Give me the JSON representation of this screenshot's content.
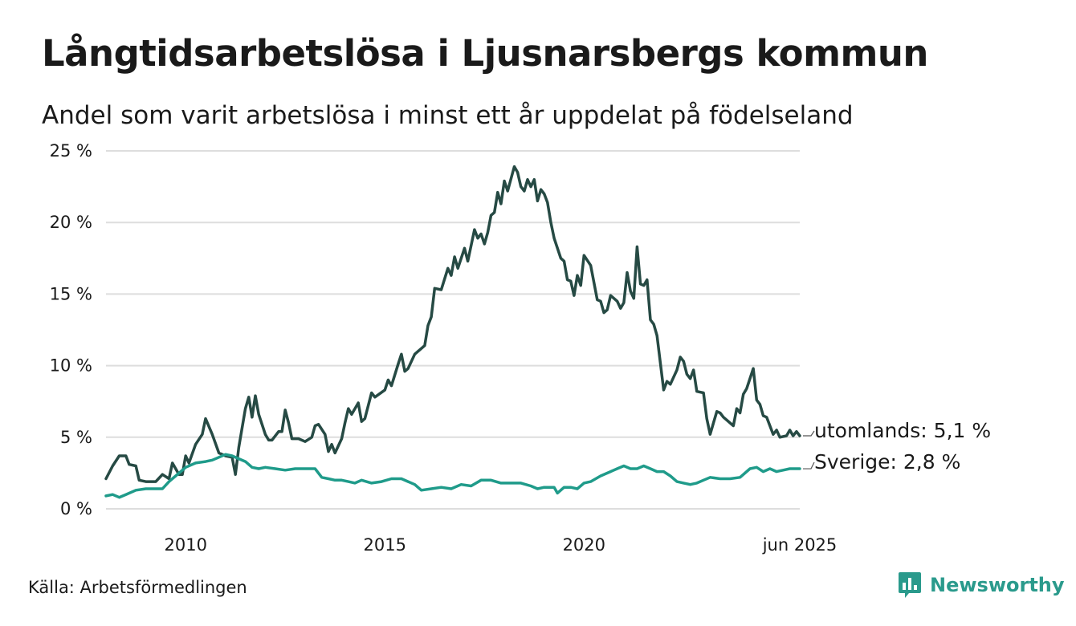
{
  "header": {
    "title": "Långtidsarbetslösa i Ljusnarsbergs kommun",
    "subtitle": "Andel som varit arbetslösa i minst ett år uppdelat på födelseland"
  },
  "footer": {
    "source": "Källa: Arbetsförmedlingen",
    "brand": "Newsworthy"
  },
  "colors": {
    "utomlands": "#264a44",
    "sverige": "#1f9b8a",
    "grid": "#dddddd",
    "brand": "#2a9a8c"
  },
  "icons": {
    "brand_logo": "bar-chart-speech-bubble-icon"
  },
  "chart_data": {
    "type": "line",
    "x_start": "2008-01",
    "x_end": "2025-06",
    "x_step": "month",
    "ylim": [
      0,
      25
    ],
    "y_ticks": [
      0,
      5,
      10,
      15,
      20,
      25
    ],
    "y_tick_labels": [
      "0 %",
      "5 %",
      "10 %",
      "15 %",
      "20 %",
      "25 %"
    ],
    "x_ticks": [
      "2010-01",
      "2015-01",
      "2020-01",
      "2025-06"
    ],
    "x_tick_labels": [
      "2010",
      "2015",
      "2020",
      "jun 2025"
    ],
    "grid": true,
    "series": [
      {
        "name": "utomlands",
        "end_label": "utomlands: 5,1 %",
        "keypoints": [
          [
            "2008-01",
            2.1
          ],
          [
            "2008-03",
            3.0
          ],
          [
            "2008-05",
            3.7
          ],
          [
            "2008-07",
            3.7
          ],
          [
            "2008-08",
            3.1
          ],
          [
            "2008-10",
            3.0
          ],
          [
            "2008-11",
            2.0
          ],
          [
            "2009-01",
            1.9
          ],
          [
            "2009-04",
            1.9
          ],
          [
            "2009-06",
            2.4
          ],
          [
            "2009-08",
            2.1
          ],
          [
            "2009-09",
            3.2
          ],
          [
            "2009-11",
            2.4
          ],
          [
            "2009-12",
            2.4
          ],
          [
            "2010-01",
            3.7
          ],
          [
            "2010-02",
            3.2
          ],
          [
            "2010-04",
            4.5
          ],
          [
            "2010-06",
            5.2
          ],
          [
            "2010-07",
            6.3
          ],
          [
            "2010-09",
            5.2
          ],
          [
            "2010-11",
            3.9
          ],
          [
            "2011-01",
            3.7
          ],
          [
            "2011-03",
            3.6
          ],
          [
            "2011-04",
            2.4
          ],
          [
            "2011-05",
            4.3
          ],
          [
            "2011-07",
            7.0
          ],
          [
            "2011-08",
            7.8
          ],
          [
            "2011-09",
            6.4
          ],
          [
            "2011-10",
            7.9
          ],
          [
            "2011-11",
            6.6
          ],
          [
            "2012-01",
            5.2
          ],
          [
            "2012-02",
            4.8
          ],
          [
            "2012-03",
            4.8
          ],
          [
            "2012-05",
            5.4
          ],
          [
            "2012-06",
            5.4
          ],
          [
            "2012-07",
            6.9
          ],
          [
            "2012-08",
            6.0
          ],
          [
            "2012-09",
            4.9
          ],
          [
            "2012-11",
            4.9
          ],
          [
            "2013-01",
            4.7
          ],
          [
            "2013-03",
            5.0
          ],
          [
            "2013-04",
            5.8
          ],
          [
            "2013-05",
            5.9
          ],
          [
            "2013-07",
            5.2
          ],
          [
            "2013-08",
            4.0
          ],
          [
            "2013-09",
            4.5
          ],
          [
            "2013-10",
            3.9
          ],
          [
            "2013-12",
            4.9
          ],
          [
            "2014-01",
            6.0
          ],
          [
            "2014-02",
            7.0
          ],
          [
            "2014-03",
            6.6
          ],
          [
            "2014-05",
            7.4
          ],
          [
            "2014-06",
            6.1
          ],
          [
            "2014-07",
            6.3
          ],
          [
            "2014-09",
            8.1
          ],
          [
            "2014-10",
            7.8
          ],
          [
            "2015-01",
            8.3
          ],
          [
            "2015-02",
            9.0
          ],
          [
            "2015-03",
            8.6
          ],
          [
            "2015-05",
            10.1
          ],
          [
            "2015-06",
            10.8
          ],
          [
            "2015-07",
            9.6
          ],
          [
            "2015-08",
            9.8
          ],
          [
            "2015-10",
            10.8
          ],
          [
            "2016-01",
            11.4
          ],
          [
            "2016-02",
            12.8
          ],
          [
            "2016-03",
            13.4
          ],
          [
            "2016-04",
            15.4
          ],
          [
            "2016-06",
            15.3
          ],
          [
            "2016-08",
            16.8
          ],
          [
            "2016-09",
            16.3
          ],
          [
            "2016-10",
            17.6
          ],
          [
            "2016-11",
            16.8
          ],
          [
            "2017-01",
            18.2
          ],
          [
            "2017-02",
            17.3
          ],
          [
            "2017-04",
            19.5
          ],
          [
            "2017-05",
            18.9
          ],
          [
            "2017-06",
            19.2
          ],
          [
            "2017-07",
            18.5
          ],
          [
            "2017-08",
            19.3
          ],
          [
            "2017-09",
            20.5
          ],
          [
            "2017-10",
            20.7
          ],
          [
            "2017-11",
            22.1
          ],
          [
            "2017-12",
            21.3
          ],
          [
            "2018-01",
            22.9
          ],
          [
            "2018-02",
            22.2
          ],
          [
            "2018-04",
            23.9
          ],
          [
            "2018-05",
            23.5
          ],
          [
            "2018-06",
            22.5
          ],
          [
            "2018-07",
            22.2
          ],
          [
            "2018-08",
            23.0
          ],
          [
            "2018-09",
            22.5
          ],
          [
            "2018-10",
            23.0
          ],
          [
            "2018-11",
            21.5
          ],
          [
            "2018-12",
            22.3
          ],
          [
            "2019-01",
            22.0
          ],
          [
            "2019-02",
            21.4
          ],
          [
            "2019-03",
            20.0
          ],
          [
            "2019-04",
            18.9
          ],
          [
            "2019-06",
            17.5
          ],
          [
            "2019-07",
            17.3
          ],
          [
            "2019-08",
            16.0
          ],
          [
            "2019-09",
            15.9
          ],
          [
            "2019-10",
            14.9
          ],
          [
            "2019-11",
            16.3
          ],
          [
            "2019-12",
            15.6
          ],
          [
            "2020-01",
            17.7
          ],
          [
            "2020-03",
            17.0
          ],
          [
            "2020-05",
            14.6
          ],
          [
            "2020-06",
            14.5
          ],
          [
            "2020-07",
            13.7
          ],
          [
            "2020-08",
            13.9
          ],
          [
            "2020-09",
            14.9
          ],
          [
            "2020-11",
            14.5
          ],
          [
            "2020-12",
            14.0
          ],
          [
            "2021-01",
            14.4
          ],
          [
            "2021-02",
            16.5
          ],
          [
            "2021-03",
            15.2
          ],
          [
            "2021-04",
            14.7
          ],
          [
            "2021-05",
            18.3
          ],
          [
            "2021-06",
            15.7
          ],
          [
            "2021-07",
            15.6
          ],
          [
            "2021-08",
            16.0
          ],
          [
            "2021-09",
            13.2
          ],
          [
            "2021-10",
            12.9
          ],
          [
            "2021-11",
            12.1
          ],
          [
            "2022-01",
            8.3
          ],
          [
            "2022-02",
            8.9
          ],
          [
            "2022-03",
            8.7
          ],
          [
            "2022-05",
            9.7
          ],
          [
            "2022-06",
            10.6
          ],
          [
            "2022-07",
            10.3
          ],
          [
            "2022-08",
            9.4
          ],
          [
            "2022-09",
            9.1
          ],
          [
            "2022-10",
            9.7
          ],
          [
            "2022-11",
            8.2
          ],
          [
            "2023-01",
            8.1
          ],
          [
            "2023-02",
            6.3
          ],
          [
            "2023-03",
            5.2
          ],
          [
            "2023-04",
            6.0
          ],
          [
            "2023-05",
            6.8
          ],
          [
            "2023-06",
            6.7
          ],
          [
            "2023-07",
            6.4
          ],
          [
            "2023-08",
            6.2
          ],
          [
            "2023-10",
            5.8
          ],
          [
            "2023-11",
            7.0
          ],
          [
            "2023-12",
            6.7
          ],
          [
            "2024-01",
            8.0
          ],
          [
            "2024-02",
            8.4
          ],
          [
            "2024-04",
            9.8
          ],
          [
            "2024-05",
            7.6
          ],
          [
            "2024-06",
            7.3
          ],
          [
            "2024-07",
            6.5
          ],
          [
            "2024-08",
            6.4
          ],
          [
            "2024-10",
            5.2
          ],
          [
            "2024-11",
            5.5
          ],
          [
            "2024-12",
            5.0
          ],
          [
            "2025-02",
            5.1
          ],
          [
            "2025-03",
            5.5
          ],
          [
            "2025-04",
            5.1
          ],
          [
            "2025-05",
            5.4
          ],
          [
            "2025-06",
            5.1
          ]
        ]
      },
      {
        "name": "Sverige",
        "end_label": "Sverige: 2,8 %",
        "keypoints": [
          [
            "2008-01",
            0.9
          ],
          [
            "2008-03",
            1.0
          ],
          [
            "2008-05",
            0.8
          ],
          [
            "2008-07",
            1.0
          ],
          [
            "2008-10",
            1.3
          ],
          [
            "2009-01",
            1.4
          ],
          [
            "2009-04",
            1.4
          ],
          [
            "2009-06",
            1.4
          ],
          [
            "2009-08",
            1.9
          ],
          [
            "2009-10",
            2.3
          ],
          [
            "2010-01",
            2.9
          ],
          [
            "2010-04",
            3.2
          ],
          [
            "2010-07",
            3.3
          ],
          [
            "2010-09",
            3.4
          ],
          [
            "2010-11",
            3.6
          ],
          [
            "2011-01",
            3.8
          ],
          [
            "2011-03",
            3.7
          ],
          [
            "2011-05",
            3.5
          ],
          [
            "2011-07",
            3.3
          ],
          [
            "2011-09",
            2.9
          ],
          [
            "2011-11",
            2.8
          ],
          [
            "2012-01",
            2.9
          ],
          [
            "2012-04",
            2.8
          ],
          [
            "2012-07",
            2.7
          ],
          [
            "2012-10",
            2.8
          ],
          [
            "2013-01",
            2.8
          ],
          [
            "2013-04",
            2.8
          ],
          [
            "2013-06",
            2.2
          ],
          [
            "2013-08",
            2.1
          ],
          [
            "2013-10",
            2.0
          ],
          [
            "2013-12",
            2.0
          ],
          [
            "2014-02",
            1.9
          ],
          [
            "2014-04",
            1.8
          ],
          [
            "2014-06",
            2.0
          ],
          [
            "2014-09",
            1.8
          ],
          [
            "2014-12",
            1.9
          ],
          [
            "2015-03",
            2.1
          ],
          [
            "2015-06",
            2.1
          ],
          [
            "2015-08",
            1.9
          ],
          [
            "2015-10",
            1.7
          ],
          [
            "2015-12",
            1.3
          ],
          [
            "2016-03",
            1.4
          ],
          [
            "2016-06",
            1.5
          ],
          [
            "2016-09",
            1.4
          ],
          [
            "2016-12",
            1.7
          ],
          [
            "2017-03",
            1.6
          ],
          [
            "2017-06",
            2.0
          ],
          [
            "2017-09",
            2.0
          ],
          [
            "2017-12",
            1.8
          ],
          [
            "2018-03",
            1.8
          ],
          [
            "2018-06",
            1.8
          ],
          [
            "2018-09",
            1.6
          ],
          [
            "2018-11",
            1.4
          ],
          [
            "2019-01",
            1.5
          ],
          [
            "2019-04",
            1.5
          ],
          [
            "2019-05",
            1.1
          ],
          [
            "2019-07",
            1.5
          ],
          [
            "2019-09",
            1.5
          ],
          [
            "2019-11",
            1.4
          ],
          [
            "2020-01",
            1.8
          ],
          [
            "2020-03",
            1.9
          ],
          [
            "2020-06",
            2.3
          ],
          [
            "2020-09",
            2.6
          ],
          [
            "2020-11",
            2.8
          ],
          [
            "2021-01",
            3.0
          ],
          [
            "2021-03",
            2.8
          ],
          [
            "2021-05",
            2.8
          ],
          [
            "2021-07",
            3.0
          ],
          [
            "2021-09",
            2.8
          ],
          [
            "2021-11",
            2.6
          ],
          [
            "2022-01",
            2.6
          ],
          [
            "2022-03",
            2.3
          ],
          [
            "2022-05",
            1.9
          ],
          [
            "2022-07",
            1.8
          ],
          [
            "2022-09",
            1.7
          ],
          [
            "2022-11",
            1.8
          ],
          [
            "2023-01",
            2.0
          ],
          [
            "2023-03",
            2.2
          ],
          [
            "2023-06",
            2.1
          ],
          [
            "2023-09",
            2.1
          ],
          [
            "2023-12",
            2.2
          ],
          [
            "2024-03",
            2.8
          ],
          [
            "2024-05",
            2.9
          ],
          [
            "2024-07",
            2.6
          ],
          [
            "2024-09",
            2.8
          ],
          [
            "2024-11",
            2.6
          ],
          [
            "2025-01",
            2.7
          ],
          [
            "2025-03",
            2.8
          ],
          [
            "2025-05",
            2.8
          ],
          [
            "2025-06",
            2.8
          ]
        ]
      }
    ]
  }
}
